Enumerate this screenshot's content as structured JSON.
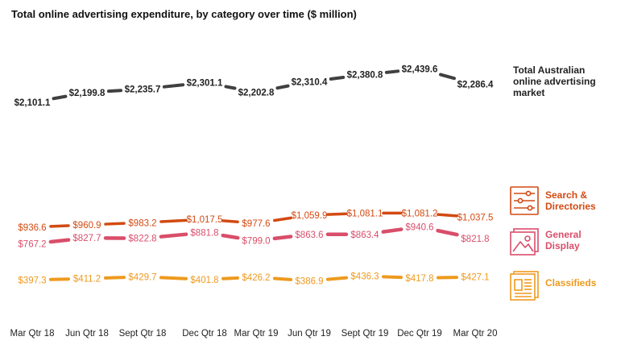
{
  "chart_data": {
    "type": "line",
    "title": "Total online advertising expenditure, by category over time ($ million)",
    "xlabel": "",
    "ylabel": "",
    "categories": [
      "Mar Qtr 18",
      "Jun Qtr 18",
      "Sept Qtr 18",
      "Dec Qtr 18",
      "Mar Qtr 19",
      "Jun Qtr 19",
      "Sept Qtr 19",
      "Dec Qtr 19",
      "Mar Qtr 20"
    ],
    "series": [
      {
        "name": "Total Australian online advertising market",
        "name_lines": [
          "Total Australian",
          "online advertising",
          "market"
        ],
        "color": "#404040",
        "values": [
          2101.1,
          2199.8,
          2235.7,
          2301.1,
          2202.8,
          2310.4,
          2380.8,
          2439.6,
          2286.4
        ],
        "labels": [
          "$2,101.1",
          "$2,199.8",
          "$2,235.7",
          "$2,301.1",
          "$2,202.8",
          "$2,310.4",
          "$2,380.8",
          "$2,439.6",
          "$2,286.4"
        ]
      },
      {
        "name": "Search & Directories",
        "name_lines": [
          "Search &",
          "Directories"
        ],
        "color": "#d24a12",
        "icon": "search-directories-icon",
        "values": [
          936.6,
          960.9,
          983.2,
          1017.5,
          977.6,
          1059.9,
          1081.1,
          1081.2,
          1037.5
        ],
        "labels": [
          "$936.6",
          "$960.9",
          "$983.2",
          "$1,017.5",
          "$977.6",
          "$1,059.9",
          "$1,081.1",
          "$1,081.2",
          "$1,037.5"
        ]
      },
      {
        "name": "General Display",
        "name_lines": [
          "General",
          "Display"
        ],
        "color": "#d94e6a",
        "icon": "general-display-icon",
        "values": [
          767.2,
          827.7,
          822.8,
          881.8,
          799.0,
          863.6,
          863.4,
          940.6,
          821.8
        ],
        "labels": [
          "$767.2",
          "$827.7",
          "$822.8",
          "$881.8",
          "$799.0",
          "$863.6",
          "$863.4",
          "$940.6",
          "$821.8"
        ]
      },
      {
        "name": "Classifieds",
        "name_lines": [
          "Classifieds"
        ],
        "color": "#ee9a1e",
        "icon": "classifieds-icon",
        "values": [
          397.3,
          411.2,
          429.7,
          401.8,
          426.2,
          386.9,
          436.3,
          417.8,
          427.1
        ],
        "labels": [
          "$397.3",
          "$411.2",
          "$429.7",
          "$401.8",
          "$426.2",
          "$386.9",
          "$436.3",
          "$417.8",
          "$427.1"
        ]
      }
    ]
  }
}
